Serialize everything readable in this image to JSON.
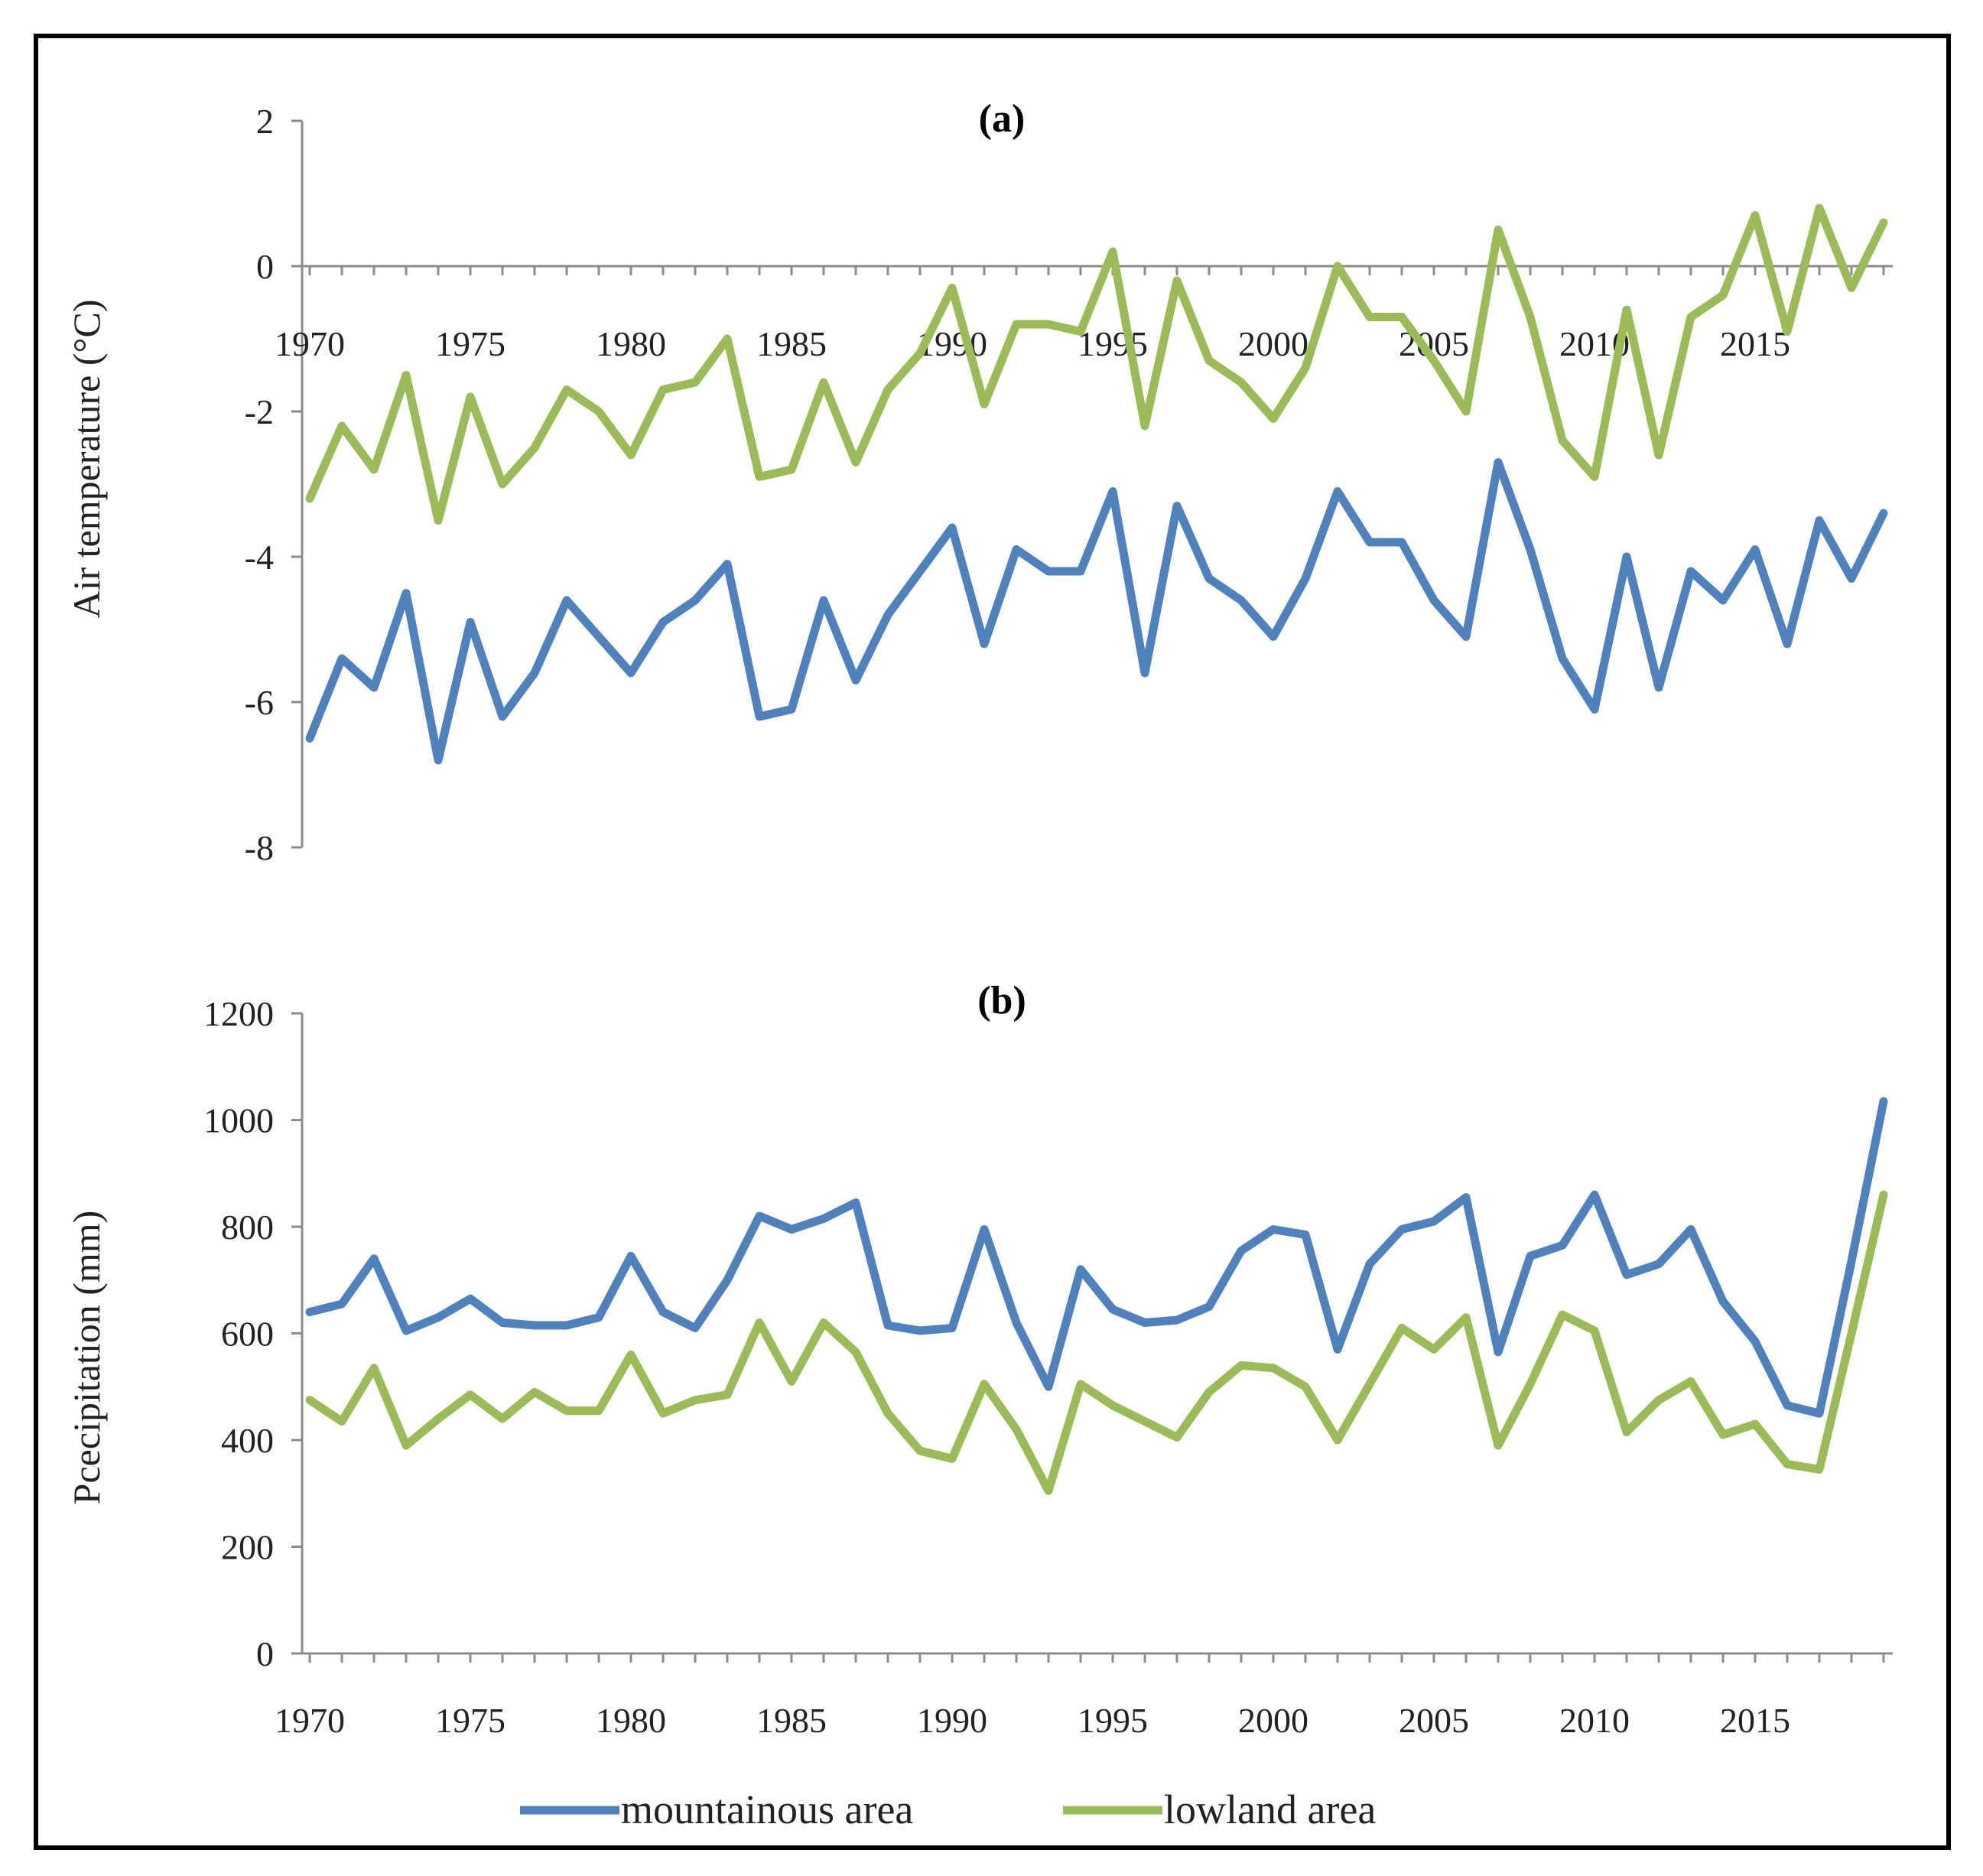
{
  "colors": {
    "mountain": "#4f81bd",
    "lowland": "#9bbb59"
  },
  "legend": {
    "mountain_label": "mountainous area",
    "lowland_label": "lowland area"
  },
  "chart_data": [
    {
      "type": "line",
      "title": "(a)",
      "xlabel": "",
      "ylabel": "Air temperature (°C)",
      "ylim": [
        -8,
        2
      ],
      "yticks": [
        2,
        0,
        -2,
        -4,
        -6,
        -8
      ],
      "xticks": [
        1970,
        1975,
        1980,
        1985,
        1990,
        1995,
        2000,
        2005,
        2010,
        2015
      ],
      "x": [
        1970,
        1971,
        1972,
        1973,
        1974,
        1975,
        1976,
        1977,
        1978,
        1979,
        1980,
        1981,
        1982,
        1983,
        1984,
        1985,
        1986,
        1987,
        1988,
        1989,
        1990,
        1991,
        1992,
        1993,
        1994,
        1995,
        1996,
        1997,
        1998,
        1999,
        2000,
        2001,
        2002,
        2003,
        2004,
        2005,
        2006,
        2007,
        2008,
        2009,
        2010,
        2011,
        2012,
        2013,
        2014,
        2015,
        2016,
        2017,
        2018,
        2019
      ],
      "series": [
        {
          "name": "mountainous area",
          "values": [
            -6.5,
            -5.4,
            -5.8,
            -4.5,
            -6.8,
            -4.9,
            -6.2,
            -5.6,
            -4.6,
            -5.1,
            -5.6,
            -4.9,
            -4.6,
            -4.1,
            -6.2,
            -6.1,
            -4.6,
            -5.7,
            -4.8,
            -4.2,
            -3.6,
            -5.2,
            -3.9,
            -4.2,
            -4.2,
            -3.1,
            -5.6,
            -3.3,
            -4.3,
            -4.6,
            -5.1,
            -4.3,
            -3.1,
            -3.8,
            -3.8,
            -4.6,
            -5.1,
            -2.7,
            -3.9,
            -5.4,
            -6.1,
            -4.0,
            -5.8,
            -4.2,
            -4.6,
            -3.9,
            -5.2,
            -3.5,
            -4.3,
            -3.4
          ]
        },
        {
          "name": "lowland area",
          "values": [
            -3.2,
            -2.2,
            -2.8,
            -1.5,
            -3.5,
            -1.8,
            -3.0,
            -2.5,
            -1.7,
            -2.0,
            -2.6,
            -1.7,
            -1.6,
            -1.0,
            -2.9,
            -2.8,
            -1.6,
            -2.7,
            -1.7,
            -1.2,
            -0.3,
            -1.9,
            -0.8,
            -0.8,
            -0.9,
            0.2,
            -2.2,
            -0.2,
            -1.3,
            -1.6,
            -2.1,
            -1.4,
            0.0,
            -0.7,
            -0.7,
            -1.3,
            -2.0,
            0.5,
            -0.7,
            -2.4,
            -2.9,
            -0.6,
            -2.6,
            -0.7,
            -0.4,
            0.7,
            -0.9,
            0.8,
            -0.3,
            0.6
          ]
        }
      ]
    },
    {
      "type": "line",
      "title": "(b)",
      "xlabel": "",
      "ylabel": "Pcecipitation (mm)",
      "ylim": [
        0,
        1200
      ],
      "yticks": [
        1200,
        1000,
        800,
        600,
        400,
        200,
        0
      ],
      "xticks": [
        1970,
        1975,
        1980,
        1985,
        1990,
        1995,
        2000,
        2005,
        2010,
        2015
      ],
      "x": [
        1970,
        1971,
        1972,
        1973,
        1974,
        1975,
        1976,
        1977,
        1978,
        1979,
        1980,
        1981,
        1982,
        1983,
        1984,
        1985,
        1986,
        1987,
        1988,
        1989,
        1990,
        1991,
        1992,
        1993,
        1994,
        1995,
        1996,
        1997,
        1998,
        1999,
        2000,
        2001,
        2002,
        2003,
        2004,
        2005,
        2006,
        2007,
        2008,
        2009,
        2010,
        2011,
        2012,
        2013,
        2014,
        2015,
        2016,
        2017,
        2018,
        2019
      ],
      "series": [
        {
          "name": "mountainous area",
          "values": [
            640,
            655,
            740,
            605,
            630,
            665,
            620,
            615,
            615,
            630,
            745,
            640,
            610,
            700,
            820,
            795,
            815,
            845,
            615,
            605,
            610,
            795,
            620,
            500,
            720,
            645,
            620,
            625,
            650,
            755,
            795,
            785,
            570,
            730,
            795,
            810,
            855,
            565,
            745,
            765,
            860,
            710,
            730,
            795,
            660,
            585,
            465,
            450,
            735,
            1035
          ]
        },
        {
          "name": "lowland area",
          "values": [
            475,
            435,
            535,
            390,
            440,
            485,
            440,
            490,
            455,
            455,
            560,
            450,
            475,
            485,
            620,
            510,
            620,
            565,
            450,
            380,
            365,
            505,
            420,
            305,
            505,
            465,
            435,
            405,
            490,
            540,
            535,
            500,
            400,
            505,
            610,
            570,
            630,
            390,
            505,
            635,
            605,
            415,
            475,
            510,
            410,
            430,
            355,
            345,
            600,
            860
          ]
        }
      ]
    }
  ]
}
